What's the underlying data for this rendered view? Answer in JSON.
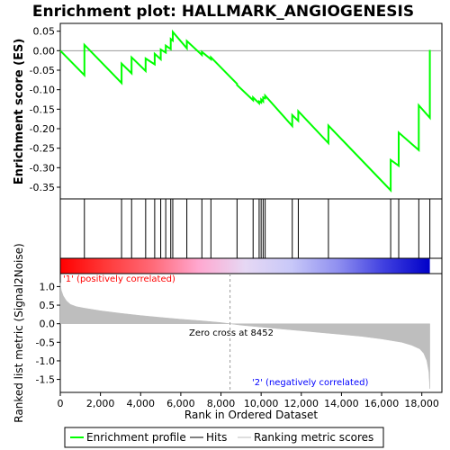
{
  "chart_data": {
    "type": "line",
    "title": "Enrichment plot: HALLMARK_ANGIOGENESIS",
    "xlabel": "Rank in Ordered Dataset",
    "xlim": [
      0,
      19000
    ],
    "x_ticks": [
      0,
      2000,
      4000,
      6000,
      8000,
      10000,
      12000,
      14000,
      16000,
      18000
    ],
    "x_tick_labels": [
      "0",
      "2,000",
      "4,000",
      "6,000",
      "8,000",
      "10,000",
      "12,000",
      "14,000",
      "16,000",
      "18,000"
    ],
    "es_panel": {
      "ylabel": "Enrichment score (ES)",
      "ylim": [
        -0.38,
        0.07
      ],
      "y_ticks": [
        0.05,
        0.0,
        -0.05,
        -0.1,
        -0.15,
        -0.2,
        -0.25,
        -0.3,
        -0.35
      ],
      "y_tick_labels": [
        "0.05",
        "0.00",
        "-0.05",
        "-0.10",
        "-0.15",
        "-0.20",
        "-0.25",
        "-0.30",
        "-0.35"
      ],
      "color": "#00ff00",
      "grid": false
    },
    "hits": [
      1200,
      3050,
      3550,
      4250,
      4700,
      5000,
      5250,
      5500,
      5600,
      6300,
      7050,
      7500,
      8800,
      9600,
      9900,
      10000,
      10100,
      10200,
      11550,
      11850,
      13350,
      16450,
      16850,
      17850,
      18400
    ],
    "hit_es": [
      0.015,
      -0.033,
      -0.017,
      -0.02,
      -0.008,
      0.003,
      0.013,
      0.03,
      0.048,
      0.025,
      -0.003,
      -0.017,
      -0.088,
      -0.12,
      -0.13,
      -0.125,
      -0.12,
      -0.115,
      -0.165,
      -0.155,
      -0.192,
      -0.28,
      -0.21,
      -0.14,
      0.002
    ],
    "series": [
      {
        "name": "Enrichment profile",
        "x": [
          0,
          1200,
          1200,
          3050,
          3050,
          3550,
          3550,
          4250,
          4250,
          4700,
          4700,
          5000,
          5000,
          5250,
          5250,
          5500,
          5500,
          5600,
          5600,
          6300,
          6300,
          7050,
          7050,
          7500,
          7500,
          8800,
          8800,
          9600,
          9600,
          9900,
          9900,
          10000,
          10000,
          10100,
          10100,
          10200,
          10200,
          11550,
          11550,
          11850,
          11850,
          13350,
          13350,
          16450,
          16450,
          16850,
          16850,
          17850,
          17850,
          18400,
          18400
        ],
        "y": [
          0.0,
          -0.063,
          0.015,
          -0.083,
          -0.033,
          -0.058,
          -0.017,
          -0.052,
          -0.02,
          -0.035,
          -0.008,
          -0.022,
          0.003,
          -0.005,
          0.013,
          0.004,
          0.03,
          0.026,
          0.048,
          0.006,
          0.025,
          -0.011,
          -0.003,
          -0.022,
          -0.017,
          -0.085,
          -0.088,
          -0.127,
          -0.12,
          -0.135,
          -0.13,
          -0.133,
          -0.125,
          -0.13,
          -0.12,
          -0.122,
          -0.115,
          -0.193,
          -0.165,
          -0.18,
          -0.155,
          -0.237,
          -0.192,
          -0.358,
          -0.28,
          -0.295,
          -0.21,
          -0.255,
          -0.14,
          -0.172,
          0.002
        ]
      }
    ],
    "rank_metric": {
      "ylabel": "Ranked list metric (Signal2Noise)",
      "ylim": [
        -1.85,
        1.35
      ],
      "y_ticks": [
        1.0,
        0.5,
        0.0,
        -0.5,
        -1.0,
        -1.5
      ],
      "y_tick_labels": [
        "1.0",
        "0.5",
        "0.0",
        "-0.5",
        "-1.0",
        "-1.5"
      ],
      "fill_color": "#bebebe",
      "zero_cross_rank": 8452,
      "zero_cross_label": "Zero cross at 8452",
      "pos_label": "'1' (positively correlated)",
      "neg_label": "'2' (negatively correlated)",
      "pos_label_color": "#ff0000",
      "neg_label_color": "#0000ff",
      "profile_ranks": [
        0,
        50,
        150,
        300,
        500,
        800,
        1200,
        2000,
        3000,
        4000,
        5000,
        6000,
        7000,
        8000,
        8452,
        9000,
        10000,
        11000,
        12000,
        13000,
        14000,
        15000,
        16000,
        17000,
        17500,
        17900,
        18100,
        18250,
        18350,
        18400
      ],
      "profile_values": [
        1.1,
        0.9,
        0.75,
        0.62,
        0.52,
        0.46,
        0.42,
        0.35,
        0.28,
        0.22,
        0.17,
        0.12,
        0.08,
        0.03,
        0.0,
        -0.04,
        -0.09,
        -0.14,
        -0.19,
        -0.24,
        -0.29,
        -0.34,
        -0.41,
        -0.5,
        -0.58,
        -0.68,
        -0.8,
        -1.0,
        -1.3,
        -1.75
      ]
    },
    "legend": {
      "placement": "bottom",
      "entries": [
        {
          "label": "Enrichment profile",
          "color": "#00ff00"
        },
        {
          "label": "Hits",
          "color": "#000000"
        },
        {
          "label": "Ranking metric scores",
          "color": "#bebebe"
        }
      ]
    },
    "colorbar": {
      "stops": [
        "#ff0000",
        "#ff3a3a",
        "#ff6a78",
        "#ffa8d0",
        "#e6d8f4",
        "#c8c8f8",
        "#9090f0",
        "#4040e0",
        "#0000c8"
      ]
    }
  }
}
